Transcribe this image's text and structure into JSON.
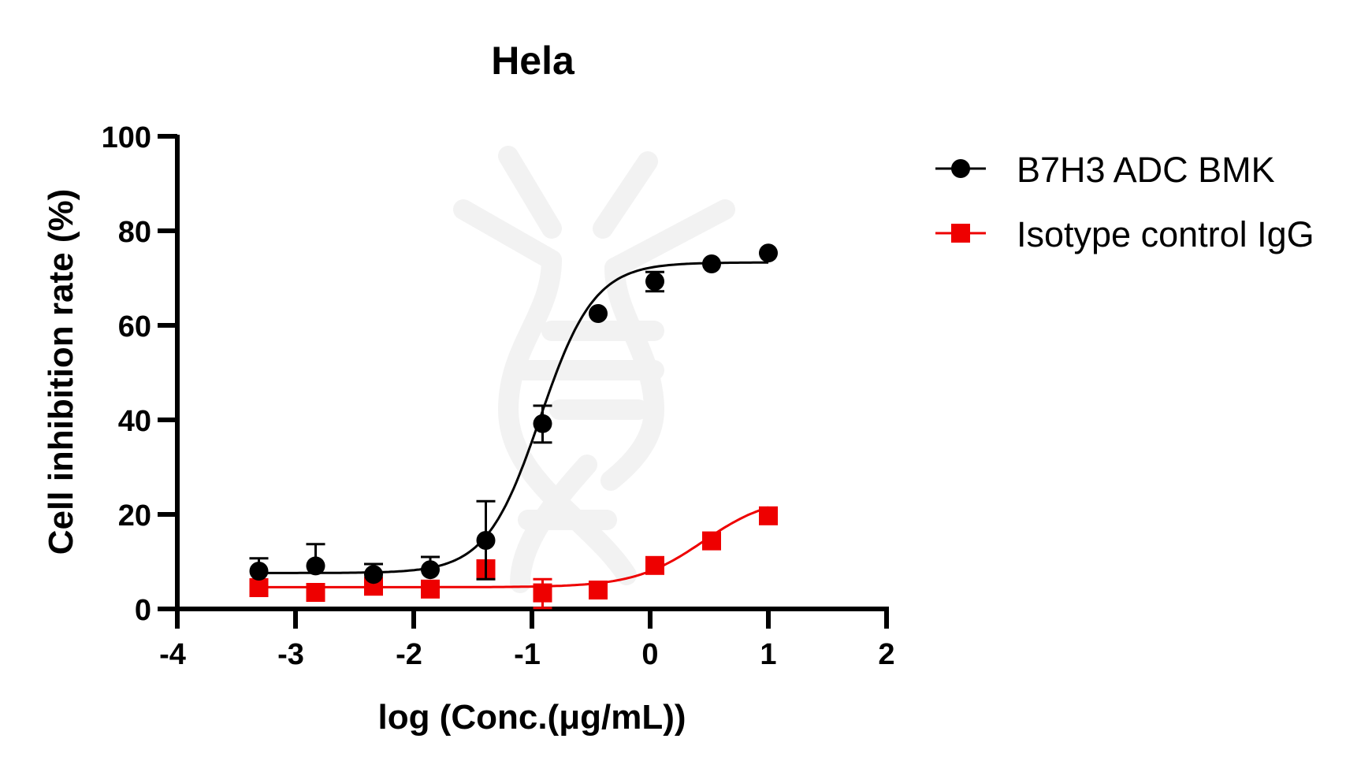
{
  "chart_data": {
    "type": "scatter",
    "title": "Hela",
    "xlabel": "log (Conc.(μg/mL))",
    "ylabel": "Cell inhibition rate (%)",
    "xlim": [
      -4,
      2
    ],
    "ylim": [
      0,
      100
    ],
    "xticks": [
      -4,
      -3,
      -2,
      -1,
      0,
      1,
      2
    ],
    "yticks": [
      0,
      20,
      40,
      60,
      80,
      100
    ],
    "grid": false,
    "legend_position": "right",
    "fit": "4-parameter logistic (sigmoidal dose-response)",
    "series": [
      {
        "name": "B7H3 ADC BMK",
        "color": "#000000",
        "marker": "circle",
        "x": [
          -3.31,
          -2.83,
          -2.34,
          -1.86,
          -1.39,
          -0.91,
          -0.44,
          0.04,
          0.52,
          1.0
        ],
        "y": [
          8.0,
          9.1,
          7.3,
          8.3,
          14.5,
          39.2,
          62.5,
          69.3,
          73.0,
          75.3
        ],
        "error_upper": [
          10.7,
          13.7,
          9.5,
          11.0,
          22.8,
          43.0,
          62.5,
          71.3,
          73.0,
          75.3
        ],
        "error_lower": [
          8.0,
          9.1,
          7.3,
          8.3,
          6.3,
          35.2,
          62.5,
          67.2,
          73.0,
          75.3
        ],
        "fit_params": {
          "bottom": 7.6,
          "top": 73.3,
          "logIC50": -0.93,
          "hill": 1.9
        }
      },
      {
        "name": "Isotype control IgG",
        "color": "#ee0000",
        "marker": "square",
        "x": [
          -3.31,
          -2.83,
          -2.34,
          -1.86,
          -1.39,
          -0.91,
          -0.44,
          0.04,
          0.52,
          1.0
        ],
        "y": [
          4.5,
          3.5,
          4.8,
          4.2,
          8.5,
          3.4,
          4.0,
          9.2,
          14.4,
          19.7
        ],
        "error_upper": [
          4.5,
          3.5,
          4.8,
          4.2,
          8.5,
          6.3,
          4.0,
          9.2,
          14.4,
          19.7
        ],
        "error_lower": [
          4.5,
          3.5,
          4.8,
          4.2,
          8.5,
          0.2,
          4.0,
          9.2,
          14.4,
          19.7
        ],
        "fit_params": {
          "bottom": 4.6,
          "top": 24.0,
          "logIC50": 0.45,
          "hill": 1.5
        }
      }
    ]
  },
  "legend": {
    "items": [
      {
        "label": "B7H3 ADC BMK"
      },
      {
        "label": "Isotype control IgG"
      }
    ]
  }
}
